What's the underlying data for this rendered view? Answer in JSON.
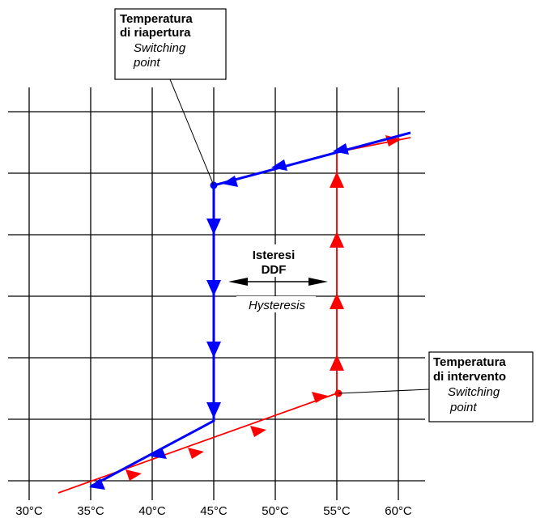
{
  "x_axis": {
    "ticks": [
      "30°C",
      "35°C",
      "40°C",
      "45°C",
      "50°C",
      "55°C",
      "60°C"
    ]
  },
  "annotations": {
    "reopening": {
      "title_line1": "Temperatura",
      "title_line2": "di riapertura",
      "subtitle_line1": "Switching",
      "subtitle_line2": "point"
    },
    "intervention": {
      "title_line1": "Temperatura",
      "title_line2": "di intervento",
      "subtitle_line1": "Switching",
      "subtitle_line2": "point"
    },
    "hysteresis": {
      "title_line1": "Isteresi",
      "title_line2": "DDF",
      "subtitle": "Hysteresis"
    }
  },
  "colors": {
    "heating": "#ff0000",
    "cooling": "#0000ff",
    "grid": "#000000"
  }
}
